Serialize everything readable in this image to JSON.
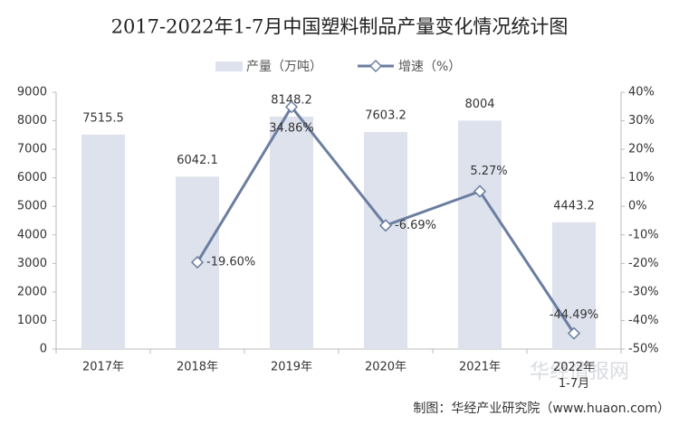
{
  "chart_data": {
    "type": "bar-line",
    "title": "2017-2022年1-7月中国塑料制品产量变化情况统计图",
    "categories": [
      "2017年",
      "2018年",
      "2019年",
      "2020年",
      "2021年",
      "2022年\n1-7月"
    ],
    "series": [
      {
        "name": "产量（万吨）",
        "color": "#dde2ec",
        "type": "bar",
        "values": [
          7515.5,
          6042.1,
          8148.2,
          7603.2,
          8004,
          4443.2
        ]
      },
      {
        "name": "增速（%）",
        "color": "#6b7ea1",
        "type": "line",
        "axis": "y2",
        "values": [
          null,
          -19.6,
          34.86,
          -6.69,
          5.27,
          -44.49
        ],
        "value_labels": [
          null,
          "-19.60%",
          "34.86%",
          "-6.69%",
          "5.27%",
          "-44.49%"
        ]
      }
    ],
    "ylim": [
      0,
      9000
    ],
    "yticks": [
      0,
      1000,
      2000,
      3000,
      4000,
      5000,
      6000,
      7000,
      8000,
      9000
    ],
    "y2lim": [
      -50,
      40
    ],
    "y2ticks": [
      {
        "value": -50,
        "label": "-50%"
      },
      {
        "value": -40,
        "label": "-40%"
      },
      {
        "value": -30,
        "label": "-30%"
      },
      {
        "value": -20,
        "label": "-20%"
      },
      {
        "value": -10,
        "label": "-10%"
      },
      {
        "value": 0,
        "label": "0%"
      },
      {
        "value": 10,
        "label": "10%"
      },
      {
        "value": 20,
        "label": "20%"
      },
      {
        "value": 30,
        "label": "30%"
      },
      {
        "value": 40,
        "label": "40%"
      }
    ],
    "legend": "top",
    "source": "制图：华经产业研究院（www.huaon.com）",
    "watermark": "华经情报网"
  }
}
